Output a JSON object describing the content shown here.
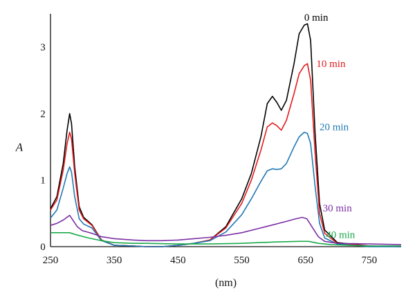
{
  "chart_data": {
    "type": "line",
    "xlabel": "(nm)",
    "ylabel": "A",
    "xlim": [
      250,
      800
    ],
    "ylim": [
      0,
      3.5
    ],
    "xticks": [
      "250",
      "350",
      "450",
      "550",
      "650",
      "750"
    ],
    "yticks": [
      "0",
      "1",
      "2",
      "3"
    ],
    "grid": false,
    "legend": "inline labels near curve peaks",
    "series": [
      {
        "name": "0 min",
        "color": "#000000",
        "label_at": [
          648,
          3.45
        ],
        "points": [
          [
            250,
            0.57
          ],
          [
            260,
            0.75
          ],
          [
            270,
            1.25
          ],
          [
            276,
            1.75
          ],
          [
            280,
            2.0
          ],
          [
            283,
            1.85
          ],
          [
            288,
            1.2
          ],
          [
            295,
            0.6
          ],
          [
            302,
            0.44
          ],
          [
            315,
            0.33
          ],
          [
            330,
            0.1
          ],
          [
            350,
            0.02
          ],
          [
            380,
            0.01
          ],
          [
            400,
            0.0
          ],
          [
            425,
            0.0
          ],
          [
            450,
            0.02
          ],
          [
            475,
            0.05
          ],
          [
            500,
            0.1
          ],
          [
            525,
            0.3
          ],
          [
            550,
            0.72
          ],
          [
            565,
            1.1
          ],
          [
            580,
            1.65
          ],
          [
            590,
            2.15
          ],
          [
            598,
            2.26
          ],
          [
            605,
            2.17
          ],
          [
            612,
            2.05
          ],
          [
            620,
            2.2
          ],
          [
            632,
            2.75
          ],
          [
            640,
            3.2
          ],
          [
            648,
            3.33
          ],
          [
            653,
            3.35
          ],
          [
            658,
            3.1
          ],
          [
            665,
            1.7
          ],
          [
            672,
            0.65
          ],
          [
            680,
            0.25
          ],
          [
            700,
            0.06
          ],
          [
            750,
            0.01
          ],
          [
            800,
            0.0
          ]
        ]
      },
      {
        "name": "10 min",
        "color": "#e31a1c",
        "label_at": [
          667,
          2.75
        ],
        "points": [
          [
            250,
            0.55
          ],
          [
            260,
            0.7
          ],
          [
            270,
            1.15
          ],
          [
            276,
            1.55
          ],
          [
            280,
            1.72
          ],
          [
            283,
            1.62
          ],
          [
            288,
            1.1
          ],
          [
            295,
            0.55
          ],
          [
            302,
            0.42
          ],
          [
            315,
            0.32
          ],
          [
            330,
            0.1
          ],
          [
            350,
            0.02
          ],
          [
            380,
            0.01
          ],
          [
            400,
            0.0
          ],
          [
            425,
            0.0
          ],
          [
            450,
            0.02
          ],
          [
            475,
            0.05
          ],
          [
            500,
            0.1
          ],
          [
            525,
            0.28
          ],
          [
            550,
            0.65
          ],
          [
            565,
            1.0
          ],
          [
            580,
            1.45
          ],
          [
            590,
            1.8
          ],
          [
            598,
            1.86
          ],
          [
            605,
            1.82
          ],
          [
            612,
            1.75
          ],
          [
            620,
            1.9
          ],
          [
            632,
            2.3
          ],
          [
            640,
            2.6
          ],
          [
            648,
            2.72
          ],
          [
            653,
            2.75
          ],
          [
            658,
            2.5
          ],
          [
            665,
            1.4
          ],
          [
            672,
            0.5
          ],
          [
            680,
            0.2
          ],
          [
            700,
            0.05
          ],
          [
            750,
            0.01
          ],
          [
            800,
            0.0
          ]
        ]
      },
      {
        "name": "20 min",
        "color": "#1f78b4",
        "label_at": [
          672,
          1.8
        ],
        "points": [
          [
            250,
            0.43
          ],
          [
            260,
            0.55
          ],
          [
            270,
            0.88
          ],
          [
            276,
            1.1
          ],
          [
            280,
            1.2
          ],
          [
            283,
            1.12
          ],
          [
            288,
            0.75
          ],
          [
            295,
            0.42
          ],
          [
            302,
            0.34
          ],
          [
            315,
            0.28
          ],
          [
            330,
            0.09
          ],
          [
            350,
            0.02
          ],
          [
            380,
            0.01
          ],
          [
            400,
            0.0
          ],
          [
            425,
            0.0
          ],
          [
            450,
            0.02
          ],
          [
            475,
            0.05
          ],
          [
            500,
            0.09
          ],
          [
            525,
            0.22
          ],
          [
            550,
            0.48
          ],
          [
            565,
            0.72
          ],
          [
            580,
            0.98
          ],
          [
            590,
            1.14
          ],
          [
            598,
            1.17
          ],
          [
            605,
            1.16
          ],
          [
            612,
            1.17
          ],
          [
            620,
            1.25
          ],
          [
            632,
            1.5
          ],
          [
            640,
            1.65
          ],
          [
            648,
            1.72
          ],
          [
            653,
            1.7
          ],
          [
            658,
            1.55
          ],
          [
            665,
            0.9
          ],
          [
            672,
            0.35
          ],
          [
            680,
            0.13
          ],
          [
            700,
            0.04
          ],
          [
            750,
            0.0
          ],
          [
            800,
            0.0
          ]
        ]
      },
      {
        "name": "30 min",
        "color": "#7b2fa5",
        "label_at": [
          677,
          0.58
        ],
        "points": [
          [
            250,
            0.32
          ],
          [
            260,
            0.35
          ],
          [
            270,
            0.4
          ],
          [
            280,
            0.47
          ],
          [
            285,
            0.4
          ],
          [
            292,
            0.3
          ],
          [
            300,
            0.24
          ],
          [
            315,
            0.2
          ],
          [
            330,
            0.15
          ],
          [
            350,
            0.12
          ],
          [
            380,
            0.1
          ],
          [
            400,
            0.09
          ],
          [
            425,
            0.09
          ],
          [
            450,
            0.1
          ],
          [
            475,
            0.12
          ],
          [
            500,
            0.14
          ],
          [
            525,
            0.17
          ],
          [
            550,
            0.21
          ],
          [
            575,
            0.27
          ],
          [
            600,
            0.33
          ],
          [
            620,
            0.38
          ],
          [
            635,
            0.42
          ],
          [
            645,
            0.44
          ],
          [
            652,
            0.42
          ],
          [
            660,
            0.3
          ],
          [
            670,
            0.15
          ],
          [
            680,
            0.08
          ],
          [
            700,
            0.05
          ],
          [
            750,
            0.04
          ],
          [
            800,
            0.03
          ]
        ]
      },
      {
        "name": "40 min",
        "color": "#1aaa4a",
        "label_at": [
          682,
          0.18
        ],
        "points": [
          [
            250,
            0.21
          ],
          [
            270,
            0.21
          ],
          [
            280,
            0.21
          ],
          [
            290,
            0.18
          ],
          [
            310,
            0.13
          ],
          [
            330,
            0.09
          ],
          [
            350,
            0.06
          ],
          [
            380,
            0.05
          ],
          [
            400,
            0.05
          ],
          [
            450,
            0.04
          ],
          [
            500,
            0.04
          ],
          [
            550,
            0.05
          ],
          [
            600,
            0.07
          ],
          [
            640,
            0.08
          ],
          [
            655,
            0.08
          ],
          [
            670,
            0.05
          ],
          [
            690,
            0.03
          ],
          [
            720,
            0.02
          ],
          [
            750,
            0.01
          ],
          [
            800,
            0.01
          ]
        ]
      }
    ]
  }
}
